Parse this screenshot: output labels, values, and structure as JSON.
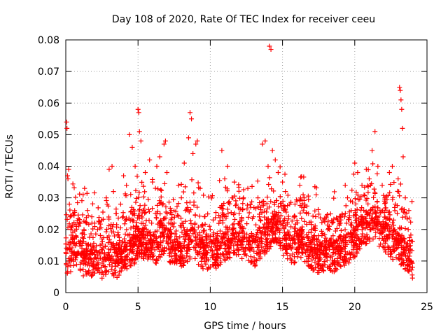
{
  "chart_data": {
    "type": "scatter",
    "title": "Day 108 of 2020, Rate Of TEC Index for receiver ceeu",
    "xlabel": "GPS time / hours",
    "ylabel": "ROTI / TECUs",
    "xlim": [
      0,
      25
    ],
    "ylim": [
      0,
      0.08
    ],
    "xticks": [
      "0",
      "5",
      "10",
      "15",
      "20",
      "25"
    ],
    "yticks": [
      "0",
      "0.01",
      "0.02",
      "0.03",
      "0.04",
      "0.05",
      "0.06",
      "0.07",
      "0.08"
    ],
    "grid": true,
    "marker": "+",
    "series_color": "#ff0000",
    "series": [
      {
        "points": [
          [
            0.05,
            0.054
          ],
          [
            0.08,
            0.052
          ],
          [
            0.12,
            0.037
          ],
          [
            0.15,
            0.036
          ],
          [
            0.2,
            0.039
          ],
          [
            0.25,
            0.028
          ],
          [
            0.3,
            0.024
          ],
          [
            0.35,
            0.02
          ],
          [
            0.5,
            0.025
          ],
          [
            0.7,
            0.018
          ],
          [
            1.0,
            0.022
          ],
          [
            1.2,
            0.031
          ],
          [
            1.3,
            0.033
          ],
          [
            1.5,
            0.026
          ],
          [
            1.8,
            0.024
          ],
          [
            2.0,
            0.022
          ],
          [
            2.2,
            0.02
          ],
          [
            2.5,
            0.017
          ],
          [
            2.8,
            0.03
          ],
          [
            3.0,
            0.039
          ],
          [
            3.2,
            0.04
          ],
          [
            3.3,
            0.032
          ],
          [
            3.5,
            0.025
          ],
          [
            3.8,
            0.028
          ],
          [
            4.0,
            0.037
          ],
          [
            4.2,
            0.034
          ],
          [
            4.4,
            0.05
          ],
          [
            4.6,
            0.046
          ],
          [
            4.8,
            0.04
          ],
          [
            5.0,
            0.058
          ],
          [
            5.05,
            0.057
          ],
          [
            5.1,
            0.051
          ],
          [
            5.2,
            0.048
          ],
          [
            5.5,
            0.038
          ],
          [
            5.8,
            0.042
          ],
          [
            6.0,
            0.035
          ],
          [
            6.3,
            0.04
          ],
          [
            6.5,
            0.043
          ],
          [
            6.8,
            0.047
          ],
          [
            6.9,
            0.048
          ],
          [
            7.0,
            0.038
          ],
          [
            7.3,
            0.026
          ],
          [
            7.5,
            0.022
          ],
          [
            7.8,
            0.034
          ],
          [
            8.0,
            0.03
          ],
          [
            8.2,
            0.041
          ],
          [
            8.5,
            0.049
          ],
          [
            8.6,
            0.057
          ],
          [
            8.7,
            0.055
          ],
          [
            8.8,
            0.044
          ],
          [
            9.0,
            0.047
          ],
          [
            9.1,
            0.048
          ],
          [
            9.3,
            0.033
          ],
          [
            9.6,
            0.024
          ],
          [
            10.0,
            0.02
          ],
          [
            10.2,
            0.023
          ],
          [
            10.5,
            0.018
          ],
          [
            10.8,
            0.045
          ],
          [
            11.0,
            0.036
          ],
          [
            11.2,
            0.04
          ],
          [
            11.5,
            0.03
          ],
          [
            11.8,
            0.028
          ],
          [
            12.0,
            0.025
          ],
          [
            12.3,
            0.03
          ],
          [
            12.6,
            0.033
          ],
          [
            12.8,
            0.027
          ],
          [
            13.0,
            0.024
          ],
          [
            13.3,
            0.03
          ],
          [
            13.6,
            0.047
          ],
          [
            13.8,
            0.048
          ],
          [
            14.0,
            0.04
          ],
          [
            14.1,
            0.078
          ],
          [
            14.2,
            0.077
          ],
          [
            14.3,
            0.045
          ],
          [
            14.5,
            0.042
          ],
          [
            14.7,
            0.038
          ],
          [
            15.0,
            0.035
          ],
          [
            15.2,
            0.032
          ],
          [
            15.5,
            0.028
          ],
          [
            15.8,
            0.024
          ],
          [
            16.0,
            0.029
          ],
          [
            16.2,
            0.034
          ],
          [
            16.5,
            0.03
          ],
          [
            16.8,
            0.025
          ],
          [
            17.0,
            0.02
          ],
          [
            17.5,
            0.018
          ],
          [
            18.0,
            0.016
          ],
          [
            18.5,
            0.018
          ],
          [
            19.0,
            0.022
          ],
          [
            19.3,
            0.024
          ],
          [
            19.5,
            0.03
          ],
          [
            19.7,
            0.029
          ],
          [
            20.0,
            0.041
          ],
          [
            20.2,
            0.038
          ],
          [
            20.5,
            0.034
          ],
          [
            20.8,
            0.039
          ],
          [
            21.0,
            0.036
          ],
          [
            21.2,
            0.045
          ],
          [
            21.4,
            0.051
          ],
          [
            21.6,
            0.04
          ],
          [
            21.9,
            0.034
          ],
          [
            22.1,
            0.03
          ],
          [
            22.4,
            0.038
          ],
          [
            22.6,
            0.04
          ],
          [
            22.8,
            0.028
          ],
          [
            23.0,
            0.036
          ],
          [
            23.1,
            0.065
          ],
          [
            23.15,
            0.064
          ],
          [
            23.2,
            0.061
          ],
          [
            23.25,
            0.058
          ],
          [
            23.3,
            0.052
          ],
          [
            23.35,
            0.043
          ],
          [
            23.5,
            0.03
          ],
          [
            23.7,
            0.02
          ],
          [
            23.9,
            0.01
          ],
          [
            24.0,
            0.008
          ]
        ]
      }
    ],
    "baseline": [
      [
        0,
        0.012
      ],
      [
        0.25,
        0.01
      ],
      [
        0.5,
        0.013
      ],
      [
        0.75,
        0.011
      ],
      [
        1,
        0.012
      ],
      [
        1.25,
        0.01
      ],
      [
        1.5,
        0.011
      ],
      [
        1.75,
        0.01
      ],
      [
        2,
        0.011
      ],
      [
        2.25,
        0.012
      ],
      [
        2.5,
        0.009
      ],
      [
        2.75,
        0.01
      ],
      [
        3,
        0.012
      ],
      [
        3.25,
        0.01
      ],
      [
        3.5,
        0.009
      ],
      [
        3.75,
        0.011
      ],
      [
        4,
        0.012
      ],
      [
        4.25,
        0.011
      ],
      [
        4.5,
        0.013
      ],
      [
        4.75,
        0.014
      ],
      [
        5,
        0.016
      ],
      [
        5.25,
        0.015
      ],
      [
        5.5,
        0.014
      ],
      [
        5.75,
        0.016
      ],
      [
        6,
        0.015
      ],
      [
        6.25,
        0.014
      ],
      [
        6.5,
        0.016
      ],
      [
        6.75,
        0.017
      ],
      [
        7,
        0.016
      ],
      [
        7.25,
        0.014
      ],
      [
        7.5,
        0.013
      ],
      [
        7.75,
        0.014
      ],
      [
        8,
        0.013
      ],
      [
        8.25,
        0.014
      ],
      [
        8.5,
        0.015
      ],
      [
        8.75,
        0.016
      ],
      [
        9,
        0.015
      ],
      [
        9.25,
        0.013
      ],
      [
        9.5,
        0.012
      ],
      [
        9.75,
        0.012
      ],
      [
        10,
        0.013
      ],
      [
        10.25,
        0.012
      ],
      [
        10.5,
        0.013
      ],
      [
        10.75,
        0.014
      ],
      [
        11,
        0.015
      ],
      [
        11.25,
        0.016
      ],
      [
        11.5,
        0.015
      ],
      [
        11.75,
        0.016
      ],
      [
        12,
        0.015
      ],
      [
        12.25,
        0.016
      ],
      [
        12.5,
        0.015
      ],
      [
        12.75,
        0.014
      ],
      [
        13,
        0.013
      ],
      [
        13.25,
        0.014
      ],
      [
        13.5,
        0.015
      ],
      [
        13.75,
        0.017
      ],
      [
        14,
        0.018
      ],
      [
        14.25,
        0.02
      ],
      [
        14.5,
        0.021
      ],
      [
        14.75,
        0.019
      ],
      [
        15,
        0.017
      ],
      [
        15.25,
        0.016
      ],
      [
        15.5,
        0.015
      ],
      [
        15.75,
        0.014
      ],
      [
        16,
        0.015
      ],
      [
        16.25,
        0.016
      ],
      [
        16.5,
        0.015
      ],
      [
        16.75,
        0.013
      ],
      [
        17,
        0.012
      ],
      [
        17.25,
        0.012
      ],
      [
        17.5,
        0.011
      ],
      [
        17.75,
        0.012
      ],
      [
        18,
        0.011
      ],
      [
        18.25,
        0.012
      ],
      [
        18.5,
        0.011
      ],
      [
        18.75,
        0.012
      ],
      [
        19,
        0.013
      ],
      [
        19.25,
        0.013
      ],
      [
        19.5,
        0.014
      ],
      [
        19.75,
        0.015
      ],
      [
        20,
        0.016
      ],
      [
        20.25,
        0.018
      ],
      [
        20.5,
        0.019
      ],
      [
        20.75,
        0.02
      ],
      [
        21,
        0.021
      ],
      [
        21.25,
        0.022
      ],
      [
        21.5,
        0.021
      ],
      [
        21.75,
        0.019
      ],
      [
        22,
        0.018
      ],
      [
        22.25,
        0.017
      ],
      [
        22.5,
        0.016
      ],
      [
        22.75,
        0.015
      ],
      [
        23,
        0.014
      ],
      [
        23.25,
        0.013
      ],
      [
        23.5,
        0.012
      ],
      [
        23.75,
        0.01
      ],
      [
        24,
        0.008
      ]
    ]
  }
}
